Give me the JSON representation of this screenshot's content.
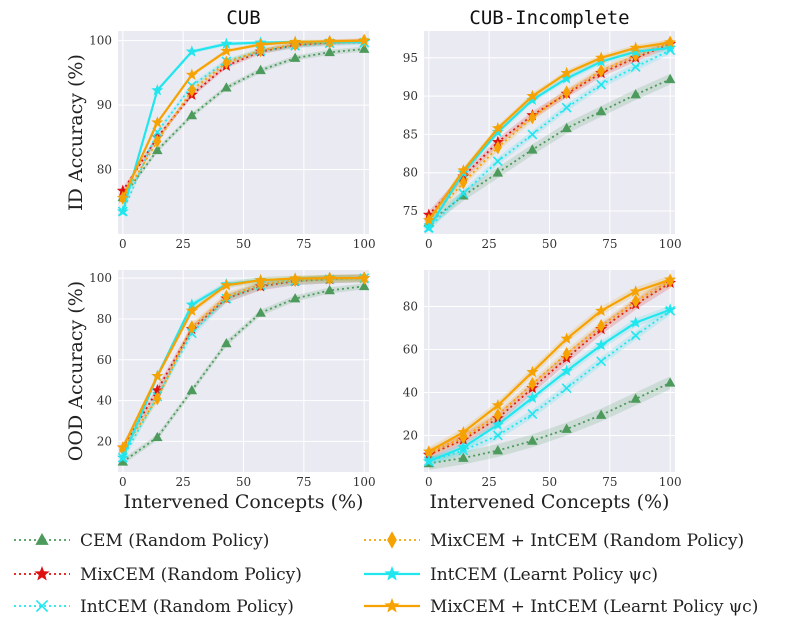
{
  "chart_data": [
    {
      "type": "line",
      "title": "CUB",
      "xlabel": "",
      "ylabel": "ID Accuracy (%)",
      "xlim": [
        -2,
        102
      ],
      "ylim": [
        70,
        101.5
      ],
      "xticks": [
        0,
        25,
        50,
        75,
        100
      ],
      "yticks": [
        80,
        90,
        100
      ],
      "x": [
        0,
        14.3,
        28.6,
        42.9,
        57.1,
        71.4,
        85.7,
        100
      ],
      "series": [
        {
          "name": "CEM (Random Policy)",
          "values": [
            75.7,
            83.0,
            88.4,
            92.7,
            95.4,
            97.3,
            98.2,
            98.7
          ],
          "band": 0.4
        },
        {
          "name": "MixCEM (Random Policy)",
          "values": [
            76.7,
            85.0,
            91.6,
            96.1,
            98.3,
            99.3,
            99.7,
            99.9
          ],
          "band": 0.4
        },
        {
          "name": "IntCEM (Random Policy)",
          "values": [
            73.5,
            85.8,
            93.0,
            96.8,
            98.4,
            99.2,
            99.6,
            99.7
          ],
          "band": 0.4
        },
        {
          "name": "MixCEM + IntCEM (Random Policy)",
          "values": [
            75.6,
            84.4,
            92.3,
            96.6,
            98.5,
            99.4,
            99.8,
            100.0
          ],
          "band": 0.4
        },
        {
          "name": "IntCEM (Learnt Policy ψc)",
          "values": [
            73.5,
            92.3,
            98.3,
            99.5,
            99.7,
            99.8,
            99.8,
            99.8
          ],
          "band": 0.3
        },
        {
          "name": "MixCEM + IntCEM (Learnt Policy ψc)",
          "values": [
            75.6,
            87.3,
            94.7,
            98.4,
            99.4,
            99.8,
            99.9,
            100.0
          ],
          "band": 0.3
        }
      ]
    },
    {
      "type": "line",
      "title": "CUB-Incomplete",
      "xlabel": "",
      "ylabel": "",
      "xlim": [
        -2,
        102
      ],
      "ylim": [
        72,
        98.5
      ],
      "xticks": [
        0,
        25,
        50,
        75,
        100
      ],
      "yticks": [
        75,
        80,
        85,
        90,
        95
      ],
      "x": [
        0,
        14.3,
        28.6,
        42.9,
        57.1,
        71.4,
        85.7,
        100
      ],
      "series": [
        {
          "name": "CEM (Random Policy)",
          "values": [
            73.5,
            77.0,
            80.0,
            83.0,
            85.8,
            88.0,
            90.2,
            92.2
          ],
          "band": 0.7
        },
        {
          "name": "MixCEM (Random Policy)",
          "values": [
            74.5,
            79.5,
            84.0,
            87.5,
            90.3,
            93.0,
            95.0,
            96.8
          ],
          "band": 0.5
        },
        {
          "name": "IntCEM (Random Policy)",
          "values": [
            72.8,
            77.3,
            81.5,
            85.0,
            88.5,
            91.5,
            93.8,
            96.0
          ],
          "band": 0.5
        },
        {
          "name": "MixCEM + IntCEM (Random Policy)",
          "values": [
            73.8,
            78.7,
            83.3,
            87.2,
            90.5,
            93.3,
            95.3,
            97.0
          ],
          "band": 0.5
        },
        {
          "name": "IntCEM (Learnt Policy ψc)",
          "values": [
            72.8,
            80.0,
            85.3,
            89.5,
            92.3,
            94.5,
            95.8,
            96.3
          ],
          "band": 0.4
        },
        {
          "name": "MixCEM + IntCEM (Learnt Policy ψc)",
          "values": [
            73.8,
            80.3,
            85.8,
            90.0,
            93.0,
            95.0,
            96.3,
            97.0
          ],
          "band": 0.4
        }
      ]
    },
    {
      "type": "line",
      "title": "",
      "xlabel": "Intervened Concepts (%)",
      "ylabel": "OOD Accuracy (%)",
      "xlim": [
        -2,
        102
      ],
      "ylim": [
        5,
        104
      ],
      "xticks": [
        0,
        25,
        50,
        75,
        100
      ],
      "yticks": [
        20,
        40,
        60,
        80,
        100
      ],
      "x": [
        0,
        14.3,
        28.6,
        42.9,
        57.1,
        71.4,
        85.7,
        100
      ],
      "series": [
        {
          "name": "CEM (Random Policy)",
          "values": [
            10.0,
            22.0,
            45.0,
            68.0,
            83.0,
            90.0,
            94.0,
            96.0
          ],
          "band": 1.5
        },
        {
          "name": "MixCEM (Random Policy)",
          "values": [
            17.0,
            45.0,
            75.0,
            90.0,
            96.0,
            98.5,
            99.5,
            100.0
          ],
          "band": 2.0
        },
        {
          "name": "IntCEM (Random Policy)",
          "values": [
            12.0,
            42.0,
            73.0,
            90.0,
            96.5,
            98.5,
            99.5,
            100.0
          ],
          "band": 2.0
        },
        {
          "name": "MixCEM + IntCEM (Random Policy)",
          "values": [
            16.0,
            41.0,
            76.0,
            91.0,
            97.0,
            99.0,
            99.8,
            100.0
          ],
          "band": 2.0
        },
        {
          "name": "IntCEM (Learnt Policy ψc)",
          "values": [
            12.0,
            52.0,
            87.0,
            97.0,
            99.0,
            99.7,
            100.0,
            100.0
          ],
          "band": 1.5
        },
        {
          "name": "MixCEM + IntCEM (Learnt Policy ψc)",
          "values": [
            17.0,
            52.0,
            84.0,
            96.5,
            99.0,
            99.8,
            100.0,
            100.0
          ],
          "band": 1.5
        }
      ]
    },
    {
      "type": "line",
      "title": "",
      "xlabel": "Intervened Concepts (%)",
      "ylabel": "",
      "xlim": [
        -2,
        102
      ],
      "ylim": [
        3,
        97
      ],
      "xticks": [
        0,
        25,
        50,
        75,
        100
      ],
      "yticks": [
        20,
        40,
        60,
        80
      ],
      "x": [
        0,
        14.3,
        28.6,
        42.9,
        57.1,
        71.4,
        85.7,
        100
      ],
      "series": [
        {
          "name": "CEM (Random Policy)",
          "values": [
            7.0,
            9.5,
            13.0,
            17.5,
            23.0,
            29.5,
            37.0,
            44.5
          ],
          "band": 3.0
        },
        {
          "name": "MixCEM (Random Policy)",
          "values": [
            11.0,
            18.0,
            28.0,
            42.0,
            56.0,
            69.5,
            81.0,
            91.0
          ],
          "band": 2.5
        },
        {
          "name": "IntCEM (Random Policy)",
          "values": [
            8.0,
            13.0,
            20.0,
            30.0,
            42.0,
            54.5,
            66.5,
            78.0
          ],
          "band": 2.0
        },
        {
          "name": "MixCEM + IntCEM (Random Policy)",
          "values": [
            12.0,
            19.0,
            29.5,
            44.0,
            58.0,
            71.0,
            82.5,
            92.0
          ],
          "band": 2.0
        },
        {
          "name": "IntCEM (Learnt Policy ψc)",
          "values": [
            8.0,
            14.5,
            25.0,
            37.5,
            50.0,
            62.0,
            72.5,
            78.5
          ],
          "band": 2.0
        },
        {
          "name": "MixCEM + IntCEM (Learnt Policy ψc)",
          "values": [
            12.5,
            21.5,
            34.0,
            49.5,
            65.0,
            78.0,
            87.0,
            92.5
          ],
          "band": 2.0
        }
      ]
    }
  ],
  "legend": {
    "placement": "bottom",
    "entries": [
      {
        "label": "CEM (Random Policy)",
        "color": "#4c9a5c",
        "marker": "triangle",
        "style": "dotted"
      },
      {
        "label": "MixCEM (Random Policy)",
        "color": "#e01010",
        "marker": "star",
        "style": "dotted"
      },
      {
        "label": "IntCEM (Random Policy)",
        "color": "#22e6ee",
        "marker": "x",
        "style": "dotted"
      },
      {
        "label": "MixCEM + IntCEM (Random Policy)",
        "color": "#f5a202",
        "marker": "diamond",
        "style": "dotted"
      },
      {
        "label": "IntCEM (Learnt Policy ψc)",
        "color": "#22e6ee",
        "marker": "star",
        "style": "solid"
      },
      {
        "label": "MixCEM + IntCEM (Learnt Policy ψc)",
        "color": "#f5a202",
        "marker": "star",
        "style": "solid"
      }
    ]
  }
}
